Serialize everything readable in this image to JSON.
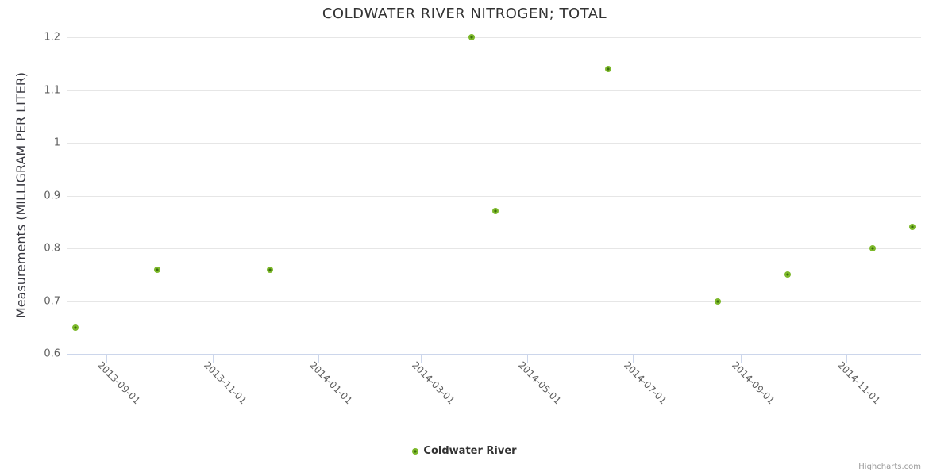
{
  "chart_data": {
    "type": "scatter",
    "title": "COLDWATER RIVER NITROGEN; TOTAL",
    "xlabel": "",
    "ylabel": "Measurements (MILLIGRAM PER LITER)",
    "ylim": [
      0.6,
      1.2
    ],
    "yticks": [
      {
        "value": 0.6,
        "label": "0.6"
      },
      {
        "value": 0.7,
        "label": "0.7"
      },
      {
        "value": 0.8,
        "label": "0.8"
      },
      {
        "value": 0.9,
        "label": "0.9"
      },
      {
        "value": 1.0,
        "label": "1"
      },
      {
        "value": 1.1,
        "label": "1.1"
      },
      {
        "value": 1.2,
        "label": "1.2"
      }
    ],
    "xlim": [
      "2013-08-09",
      "2014-12-14"
    ],
    "xticks": [
      {
        "date": "2013-09-01",
        "label": "2013-09-01"
      },
      {
        "date": "2013-11-01",
        "label": "2013-11-01"
      },
      {
        "date": "2014-01-01",
        "label": "2014-01-01"
      },
      {
        "date": "2014-03-01",
        "label": "2014-03-01"
      },
      {
        "date": "2014-05-01",
        "label": "2014-05-01"
      },
      {
        "date": "2014-07-01",
        "label": "2014-07-01"
      },
      {
        "date": "2014-09-01",
        "label": "2014-09-01"
      },
      {
        "date": "2014-11-01",
        "label": "2014-11-01"
      }
    ],
    "grid": "horizontal-only",
    "legend_position": "bottom-center",
    "series": [
      {
        "name": "Coldwater River",
        "marker_color": "#7CB82A",
        "marker_core_color": "#3C6F0C",
        "points": [
          {
            "x": "2013-08-14",
            "y": 0.65
          },
          {
            "x": "2013-09-30",
            "y": 0.76
          },
          {
            "x": "2013-12-04",
            "y": 0.76
          },
          {
            "x": "2014-03-30",
            "y": 1.2
          },
          {
            "x": "2014-04-13",
            "y": 0.87
          },
          {
            "x": "2014-06-17",
            "y": 1.14
          },
          {
            "x": "2014-08-19",
            "y": 0.7
          },
          {
            "x": "2014-09-28",
            "y": 0.75
          },
          {
            "x": "2014-11-16",
            "y": 0.8
          },
          {
            "x": "2014-12-09",
            "y": 0.84
          }
        ]
      }
    ],
    "colors": {
      "grid": "#e6e6e6",
      "axis_line": "#ccd6eb",
      "tick_label": "#606060",
      "title": "#333333"
    },
    "credits": "Highcharts.com"
  }
}
